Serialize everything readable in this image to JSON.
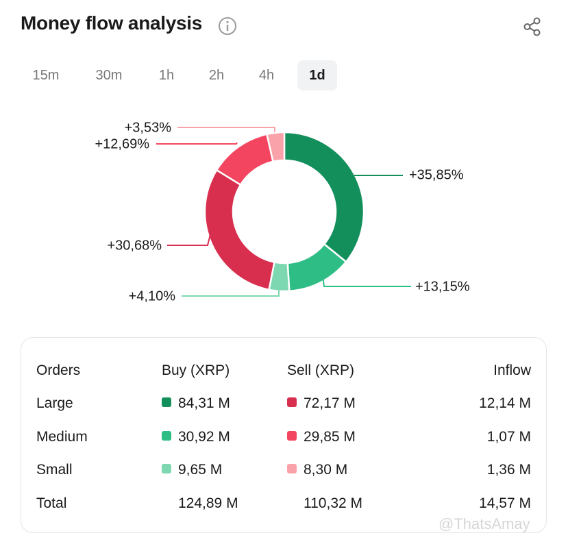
{
  "title": "Money flow analysis",
  "tabs": [
    "15m",
    "30m",
    "1h",
    "2h",
    "4h",
    "1d"
  ],
  "active_tab": "1d",
  "chart_data": {
    "type": "pie",
    "style": "donut",
    "slices": [
      {
        "label": "+35,85%",
        "value": 35.85,
        "color": "#138f5c",
        "name": "large-buy"
      },
      {
        "label": "+13,15%",
        "value": 13.15,
        "color": "#2ebd85",
        "name": "medium-buy"
      },
      {
        "label": "+4,10%",
        "value": 4.1,
        "color": "#7dd7b0",
        "name": "small-buy"
      },
      {
        "label": "+30,68%",
        "value": 30.68,
        "color": "#d92f4f",
        "name": "large-sell"
      },
      {
        "label": "+12,69%",
        "value": 12.69,
        "color": "#f3455f",
        "name": "medium-sell"
      },
      {
        "label": "+3,53%",
        "value": 3.53,
        "color": "#f9a2aa",
        "name": "small-sell"
      }
    ]
  },
  "table": {
    "headers": [
      "Orders",
      "Buy (XRP)",
      "Sell (XRP)",
      "Inflow"
    ],
    "rows": [
      {
        "order": "Large",
        "buy": "84,31 M",
        "sell": "72,17 M",
        "inflow": "12,14 M",
        "buy_color": "#138f5c",
        "sell_color": "#d92f4f"
      },
      {
        "order": "Medium",
        "buy": "30,92 M",
        "sell": "29,85 M",
        "inflow": "1,07 M",
        "buy_color": "#2ebd85",
        "sell_color": "#f3455f"
      },
      {
        "order": "Small",
        "buy": "9,65 M",
        "sell": "8,30 M",
        "inflow": "1,36 M",
        "buy_color": "#7dd7b0",
        "sell_color": "#f9a2aa"
      }
    ],
    "total": {
      "order": "Total",
      "buy": "124,89 M",
      "sell": "110,32 M",
      "inflow": "14,57 M"
    }
  },
  "watermark": "@ThatsAmay"
}
